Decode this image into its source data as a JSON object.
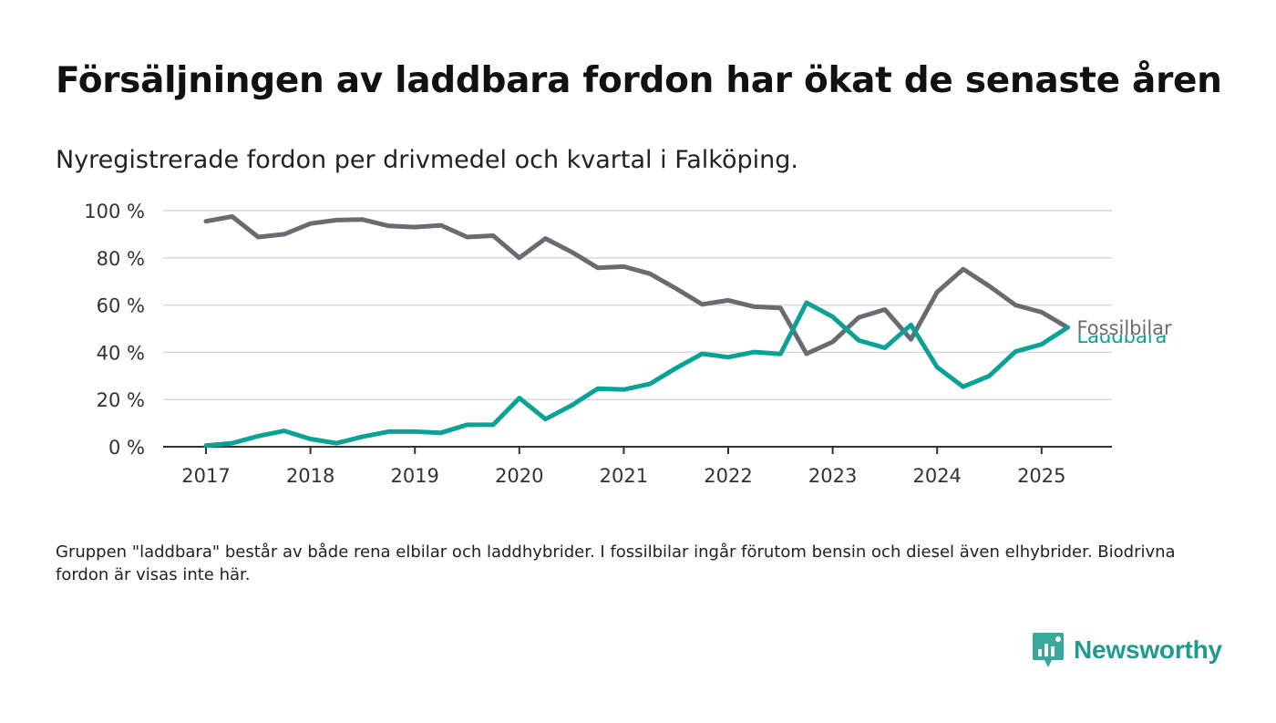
{
  "title": "Försäljningen av laddbara fordon har ökat de senaste åren",
  "subtitle": "Nyregistrerade fordon per drivmedel och kvartal i Falköping.",
  "footnote": "Gruppen \"laddbara\" består av både rena elbilar och laddhybrider. I fossilbilar ingår förutom bensin och diesel även elhybrider. Biodrivna fordon är visas inte här.",
  "brand": {
    "name": "Newsworthy",
    "icon": "newsworthy-logo-icon",
    "color": "#1e9a8e"
  },
  "chart_data": {
    "type": "line",
    "xlabel": "",
    "ylabel": "",
    "ylim": [
      0,
      100
    ],
    "yticks": [
      0,
      20,
      40,
      60,
      80,
      100
    ],
    "ytick_labels": [
      "0 %",
      "20 %",
      "40 %",
      "60 %",
      "80 %",
      "100 %"
    ],
    "xlim": [
      2017,
      2025.55
    ],
    "xticks": [
      2017,
      2018,
      2019,
      2020,
      2021,
      2022,
      2023,
      2024,
      2025
    ],
    "xtick_labels": [
      "2017",
      "2018",
      "2019",
      "2020",
      "2021",
      "2022",
      "2023",
      "2024",
      "2025"
    ],
    "grid": true,
    "legend": "end-of-line labels",
    "x": [
      2017.0,
      2017.25,
      2017.5,
      2017.75,
      2018.0,
      2018.25,
      2018.5,
      2018.75,
      2019.0,
      2019.25,
      2019.5,
      2019.75,
      2020.0,
      2020.25,
      2020.5,
      2020.75,
      2021.0,
      2021.25,
      2021.5,
      2021.75,
      2022.0,
      2022.25,
      2022.5,
      2022.75,
      2023.0,
      2023.25,
      2023.5,
      2023.75,
      2024.0,
      2024.25,
      2024.5,
      2024.75,
      2025.0,
      2025.25
    ],
    "series": [
      {
        "name": "Fossilbilar",
        "color": "#6b6a70",
        "values": [
          95.5,
          97.5,
          88.8,
          90.0,
          94.5,
          96.0,
          96.2,
          93.5,
          93.0,
          93.8,
          88.8,
          89.4,
          80.0,
          88.2,
          82.5,
          75.8,
          76.3,
          73.3,
          67.0,
          60.3,
          62.0,
          59.3,
          58.8,
          39.4,
          44.4,
          54.8,
          58.1,
          45.5,
          65.5,
          75.2,
          68.0,
          60.0,
          57.0,
          50.5
        ]
      },
      {
        "name": "Laddbara",
        "color": "#0aa295",
        "values": [
          0.5,
          1.5,
          4.5,
          6.7,
          3.3,
          1.5,
          4.3,
          6.4,
          6.4,
          5.9,
          9.3,
          9.3,
          20.6,
          11.7,
          17.5,
          24.6,
          24.2,
          26.6,
          33.3,
          39.4,
          37.9,
          40.1,
          39.3,
          61.0,
          55.0,
          45.0,
          41.9,
          51.6,
          33.7,
          25.4,
          30.0,
          40.3,
          43.4,
          50.5
        ]
      }
    ]
  }
}
